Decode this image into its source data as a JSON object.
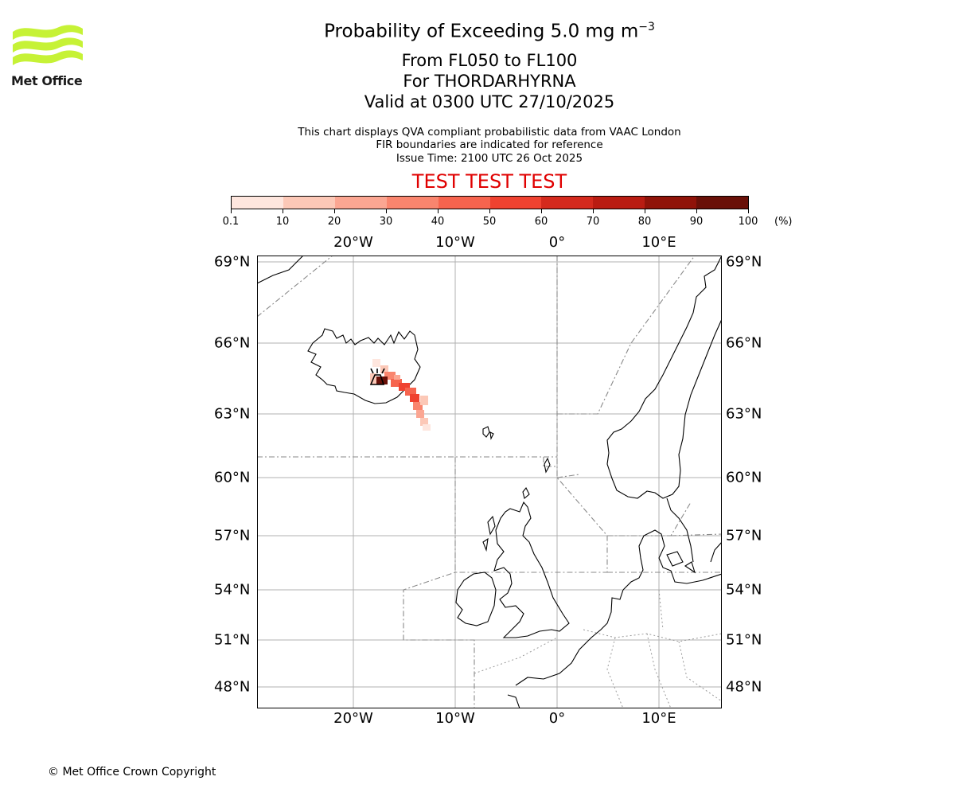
{
  "logo": {
    "text": "Met Office",
    "color": "#c6f236"
  },
  "header": {
    "title_prefix": "Probability of Exceeding 5.0 mg m",
    "title_exponent": "−3",
    "level_range": "From FL050 to FL100",
    "volcano": "For THORDARHYRNA",
    "valid_time": "Valid at 0300 UTC 27/10/2025",
    "note_line1": "This chart displays QVA compliant probabilistic data from VAAC London",
    "note_line2": "FIR boundaries are indicated for reference",
    "issue_time": "Issue Time: 2100 UTC 26 Oct 2025",
    "test_banner": "TEST TEST TEST"
  },
  "colorbar": {
    "unit": "(%)",
    "ticks": [
      "0.1",
      "10",
      "20",
      "30",
      "40",
      "50",
      "60",
      "70",
      "80",
      "90",
      "100"
    ],
    "colors": [
      "#fee6de",
      "#fcc8b7",
      "#fba692",
      "#f9856e",
      "#f6644e",
      "#ef4230",
      "#d42a1d",
      "#b91c12",
      "#901309",
      "#691008"
    ]
  },
  "map": {
    "lon_labels_top": [
      "20°W",
      "10°W",
      "0°",
      "10°E"
    ],
    "lon_labels_bottom": [
      "20°W",
      "10°W",
      "0°",
      "10°E"
    ],
    "lat_labels_left": [
      "69°N",
      "66°N",
      "63°N",
      "60°N",
      "57°N",
      "54°N",
      "51°N",
      "48°N"
    ],
    "lat_labels_right": [
      "69°N",
      "66°N",
      "63°N",
      "60°N",
      "57°N",
      "54°N",
      "51°N",
      "48°N"
    ],
    "volcano_marker": "volcano-icon",
    "ash_plume_probability_percent": [
      5,
      10,
      30,
      40,
      50,
      60,
      100
    ]
  },
  "footer": {
    "copyright": "© Met Office Crown Copyright"
  }
}
